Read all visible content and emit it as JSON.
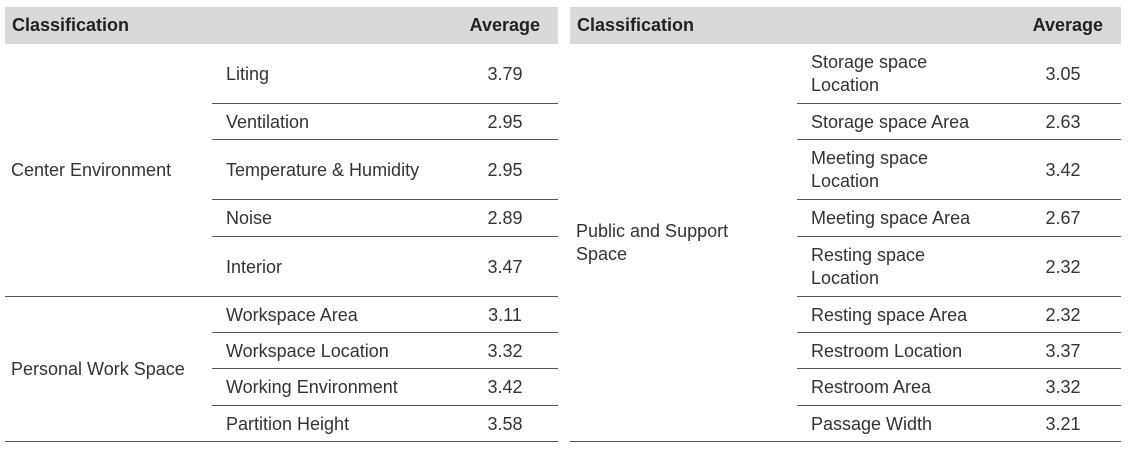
{
  "tables": [
    {
      "header": {
        "classification": "Classification",
        "average": "Average"
      },
      "groups": [
        {
          "classification": "Center Environment",
          "rows": [
            {
              "item": "Liting",
              "average": "3.79"
            },
            {
              "item": "Ventilation",
              "average": "2.95"
            },
            {
              "item": "Temperature & Humidity",
              "average": "2.95"
            },
            {
              "item": "Noise",
              "average": "2.89"
            },
            {
              "item": "Interior",
              "average": "3.47"
            }
          ]
        },
        {
          "classification": "Personal Work Space",
          "rows": [
            {
              "item": "Workspace Area",
              "average": "3.11"
            },
            {
              "item": "Workspace Location",
              "average": "3.32"
            },
            {
              "item": "Working Environment",
              "average": "3.42"
            },
            {
              "item": "Partition Height",
              "average": "3.58"
            }
          ]
        }
      ]
    },
    {
      "header": {
        "classification": "Classification",
        "average": "Average"
      },
      "groups": [
        {
          "classification": "Public and Support Space",
          "rows": [
            {
              "item": "Storage space Location",
              "average": "3.05"
            },
            {
              "item": "Storage space Area",
              "average": "2.63"
            },
            {
              "item": "Meeting space Location",
              "average": "3.42"
            },
            {
              "item": "Meeting space Area",
              "average": "2.67"
            },
            {
              "item": "Resting space Location",
              "average": "2.32"
            },
            {
              "item": "Resting space Area",
              "average": "2.32"
            },
            {
              "item": "Restroom Location",
              "average": "3.37"
            },
            {
              "item": "Restroom Area",
              "average": "3.32"
            },
            {
              "item": "Passage Width",
              "average": "3.21"
            }
          ]
        }
      ]
    }
  ]
}
